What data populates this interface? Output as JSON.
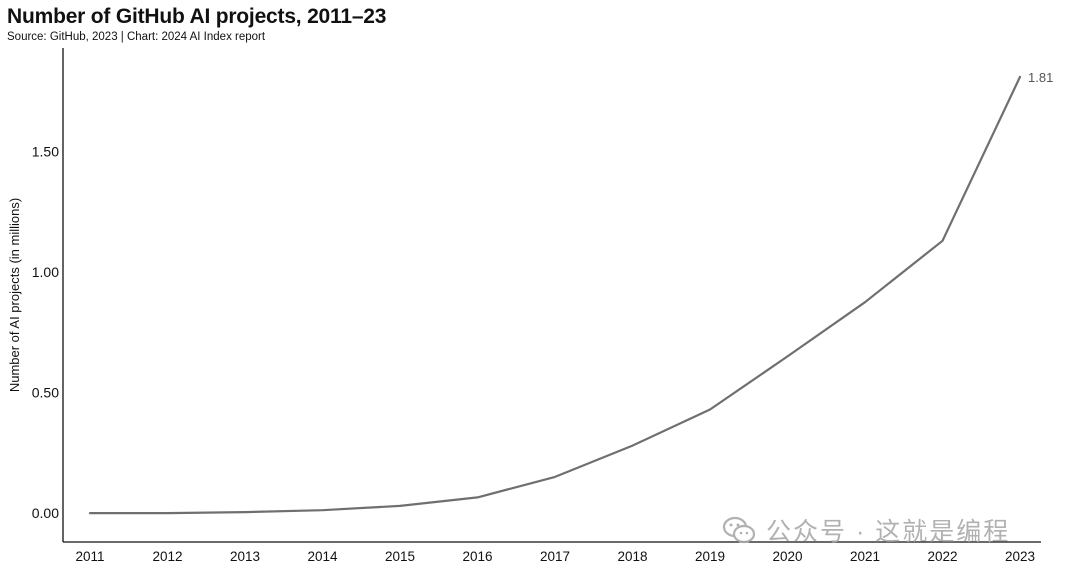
{
  "header": {
    "title": "Number of GitHub AI projects, 2011–23",
    "subtitle": "Source: GitHub, 2023 | Chart: 2024 AI Index report"
  },
  "watermark": {
    "text": "公众号 · 这就是编程"
  },
  "colors": {
    "line": "#6f6f6f",
    "axis": "#111111",
    "text": "#111111",
    "watermark": "#a9a9a9"
  },
  "chart_data": {
    "type": "line",
    "title": "Number of GitHub AI projects, 2011–23",
    "xlabel": "",
    "ylabel": "Number of AI projects (in millions)",
    "x": [
      "2011",
      "2012",
      "2013",
      "2014",
      "2015",
      "2016",
      "2017",
      "2018",
      "2019",
      "2020",
      "2021",
      "2022",
      "2023"
    ],
    "series": [
      {
        "values": [
          0.0,
          0.0,
          0.004,
          0.012,
          0.03,
          0.065,
          0.15,
          0.28,
          0.43,
          0.65,
          0.875,
          1.13,
          1.81
        ]
      }
    ],
    "ylim": [
      -0.12,
      1.93
    ],
    "yticks": [
      0.0,
      0.5,
      1.0,
      1.5
    ],
    "ytick_labels": [
      "0.00",
      "0.50",
      "1.00",
      "1.50"
    ],
    "end_label": "1.81",
    "grid": false,
    "legend": "none"
  }
}
